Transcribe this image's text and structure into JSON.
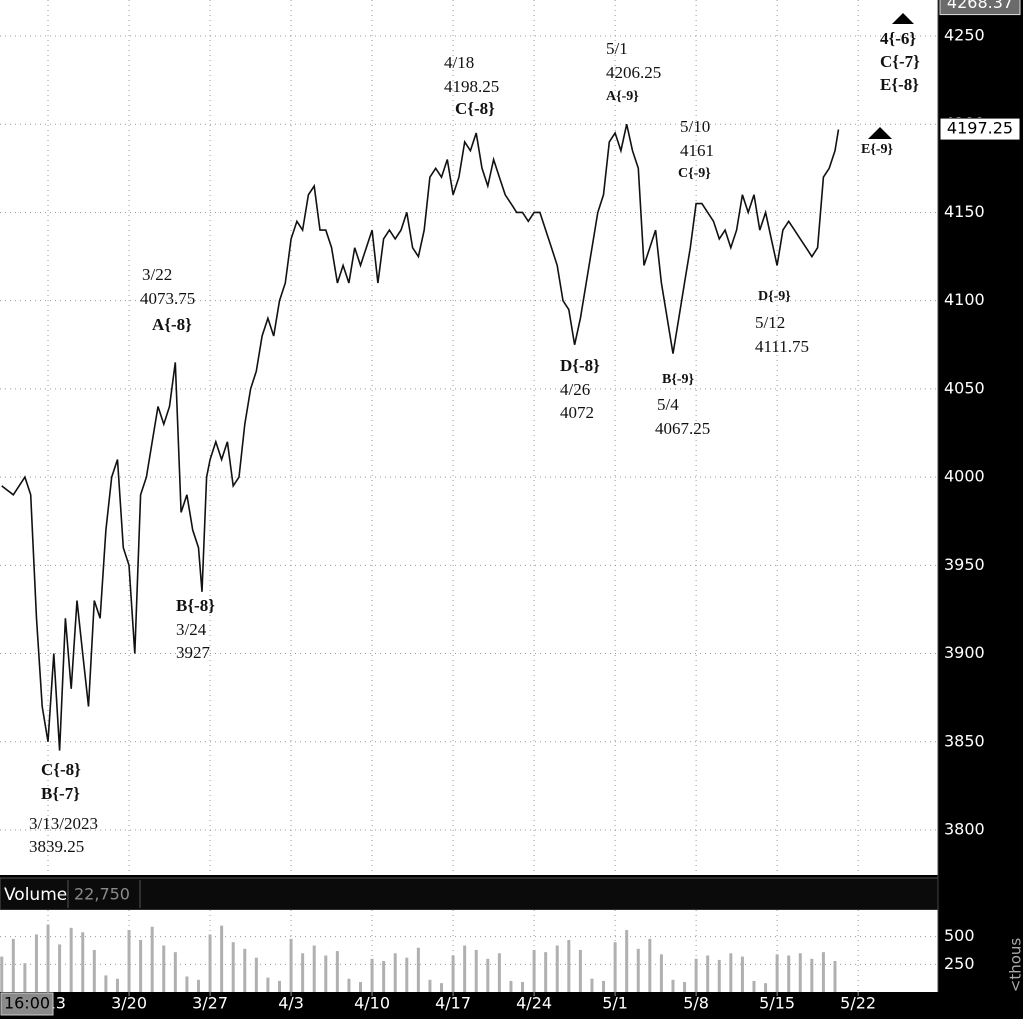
{
  "chart_data": [
    {
      "type": "line",
      "color": "#111111",
      "grid": true,
      "x": [
        -4,
        -3,
        -2,
        -1.5,
        -1,
        -0.5,
        0,
        0.5,
        1,
        1.5,
        2,
        2.5,
        3,
        3.5,
        4,
        4.5,
        5,
        5.5,
        6,
        6.5,
        7,
        7.5,
        8,
        8.5,
        9,
        9.5,
        10,
        10.5,
        11,
        11.5,
        12,
        12.5,
        13,
        13.3,
        13.7,
        14,
        14.5,
        15,
        15.5,
        16,
        16.5,
        17,
        17.5,
        18,
        18.5,
        19,
        19.5,
        20,
        20.5,
        21,
        21.5,
        22,
        22.5,
        23,
        23.5,
        24,
        24.5,
        25,
        25.5,
        26,
        26.5,
        27,
        27.5,
        28,
        28.5,
        29,
        29.5,
        30,
        30.5,
        31,
        31.5,
        32,
        32.5,
        33,
        33.5,
        34,
        34.5,
        35,
        35.5,
        36,
        36.5,
        37,
        37.5,
        38,
        38.5,
        39,
        39.5,
        40,
        40.5,
        41,
        41.5,
        42,
        42.5,
        43,
        43.5,
        44,
        44.5,
        45,
        45.5,
        46,
        46.5,
        47,
        47.5,
        48,
        48.5,
        49,
        49.5,
        50,
        50.5,
        51,
        51.5,
        52,
        52.5,
        53,
        53.5,
        54,
        54.5,
        55,
        55.5,
        56,
        56.5,
        57,
        57.5,
        58,
        58.5,
        59,
        59.5,
        60,
        60.5,
        61,
        61.5,
        62,
        62.5,
        63,
        63.5,
        64,
        64.5,
        65,
        65.5,
        66,
        66.5,
        67,
        67.5,
        68,
        68.3
      ],
      "values": [
        3995,
        3990,
        4000,
        3990,
        3920,
        3870,
        3850,
        3900,
        3845,
        3920,
        3880,
        3930,
        3900,
        3870,
        3930,
        3920,
        3970,
        4000,
        4010,
        3960,
        3950,
        3900,
        3990,
        4000,
        4020,
        4040,
        4030,
        4040,
        4065,
        3980,
        3990,
        3970,
        3960,
        3935,
        4000,
        4010,
        4020,
        4010,
        4020,
        3995,
        4000,
        4030,
        4050,
        4060,
        4080,
        4090,
        4080,
        4100,
        4110,
        4135,
        4145,
        4140,
        4160,
        4165,
        4140,
        4140,
        4130,
        4110,
        4120,
        4110,
        4130,
        4120,
        4130,
        4140,
        4110,
        4135,
        4140,
        4135,
        4140,
        4150,
        4130,
        4125,
        4140,
        4170,
        4175,
        4170,
        4180,
        4160,
        4170,
        4190,
        4185,
        4195,
        4175,
        4165,
        4180,
        4170,
        4160,
        4155,
        4150,
        4150,
        4145,
        4150,
        4150,
        4140,
        4130,
        4120,
        4100,
        4095,
        4075,
        4090,
        4110,
        4130,
        4150,
        4160,
        4190,
        4195,
        4185,
        4200,
        4185,
        4175,
        4120,
        4130,
        4140,
        4110,
        4090,
        4070,
        4090,
        4110,
        4130,
        4155,
        4155,
        4150,
        4145,
        4135,
        4140,
        4130,
        4140,
        4160,
        4150,
        4160,
        4140,
        4150,
        4135,
        4120,
        4140,
        4145,
        4140,
        4135,
        4130,
        4125,
        4130,
        4170,
        4175,
        4185,
        4197
      ],
      "xlim": [
        -4.15,
        76.9
      ],
      "xticks": [
        {
          "value": 0,
          "label": "3/13"
        },
        {
          "value": 7,
          "label": "3/20"
        },
        {
          "value": 14,
          "label": "3/27"
        },
        {
          "value": 21,
          "label": "4/3"
        },
        {
          "value": 28,
          "label": "4/10"
        },
        {
          "value": 35,
          "label": "4/17"
        },
        {
          "value": 42,
          "label": "4/24"
        },
        {
          "value": 49,
          "label": "5/1"
        },
        {
          "value": 56,
          "label": "5/8"
        },
        {
          "value": 63,
          "label": "5/15"
        },
        {
          "value": 70,
          "label": "5/22"
        }
      ],
      "ylim": [
        3774.5,
        4270.4
      ],
      "yticks": [
        3800,
        3850,
        3900,
        3950,
        4000,
        4050,
        4100,
        4150,
        4200,
        4250
      ],
      "markers": [
        4268.37,
        4197.25
      ],
      "time_label": "16:00",
      "annotations": [
        {
          "lines": [
            "3/22",
            "4073.75",
            "A{-8}"
          ]
        },
        {
          "lines": [
            "B{-8}",
            "3/24",
            "3927"
          ]
        },
        {
          "lines": [
            "C{-8}",
            "B{-7}",
            "3/13/2023",
            "3839.25"
          ]
        },
        {
          "lines": [
            "4/18",
            "4198.25",
            "C{-8}"
          ]
        },
        {
          "lines": [
            "5/1",
            "4206.25",
            "A{-9}"
          ]
        },
        {
          "lines": [
            "5/10",
            "4161",
            "C{-9}"
          ]
        },
        {
          "lines": [
            "D{-8}",
            "4/26",
            "4072"
          ]
        },
        {
          "lines": [
            "B{-9}",
            "5/4",
            "4067.25"
          ]
        },
        {
          "lines": [
            "D{-9}",
            "5/12",
            "4111.75"
          ]
        },
        {
          "lines": [
            "4{-6}",
            "C{-7}",
            "E{-8}"
          ]
        },
        {
          "lines": [
            "E{-9}"
          ]
        }
      ]
    },
    {
      "type": "bar",
      "title": "Volume",
      "subtitle": "22,750",
      "unit_label": "<thous",
      "color": "#b0b0b0",
      "x": [
        -4,
        -3,
        -2,
        -1,
        0,
        1,
        2,
        3,
        4,
        5,
        6,
        7,
        8,
        9,
        10,
        11,
        12,
        13,
        14,
        15,
        16,
        17,
        18,
        19,
        20,
        21,
        22,
        23,
        24,
        25,
        26,
        27,
        28,
        29,
        30,
        31,
        32,
        33,
        34,
        35,
        36,
        37,
        38,
        39,
        40,
        41,
        42,
        43,
        44,
        45,
        46,
        47,
        48,
        49,
        50,
        51,
        52,
        53,
        54,
        55,
        56,
        57,
        58,
        59,
        60,
        61,
        62,
        63,
        64,
        65,
        66,
        67,
        68
      ],
      "values": [
        320,
        480,
        260,
        520,
        610,
        430,
        580,
        540,
        380,
        150,
        120,
        560,
        470,
        590,
        420,
        360,
        140,
        110,
        520,
        600,
        450,
        390,
        310,
        130,
        100,
        480,
        350,
        420,
        330,
        370,
        120,
        90,
        300,
        280,
        350,
        310,
        400,
        110,
        80,
        330,
        420,
        380,
        300,
        350,
        100,
        90,
        380,
        360,
        420,
        470,
        380,
        120,
        100,
        450,
        560,
        390,
        480,
        340,
        110,
        90,
        300,
        330,
        290,
        350,
        320,
        100,
        80,
        340,
        330,
        350,
        300,
        360,
        280
      ],
      "xlim": [
        -4.15,
        76.9
      ],
      "ylim": [
        0,
        741
      ],
      "yticks": [
        250,
        500
      ]
    }
  ]
}
